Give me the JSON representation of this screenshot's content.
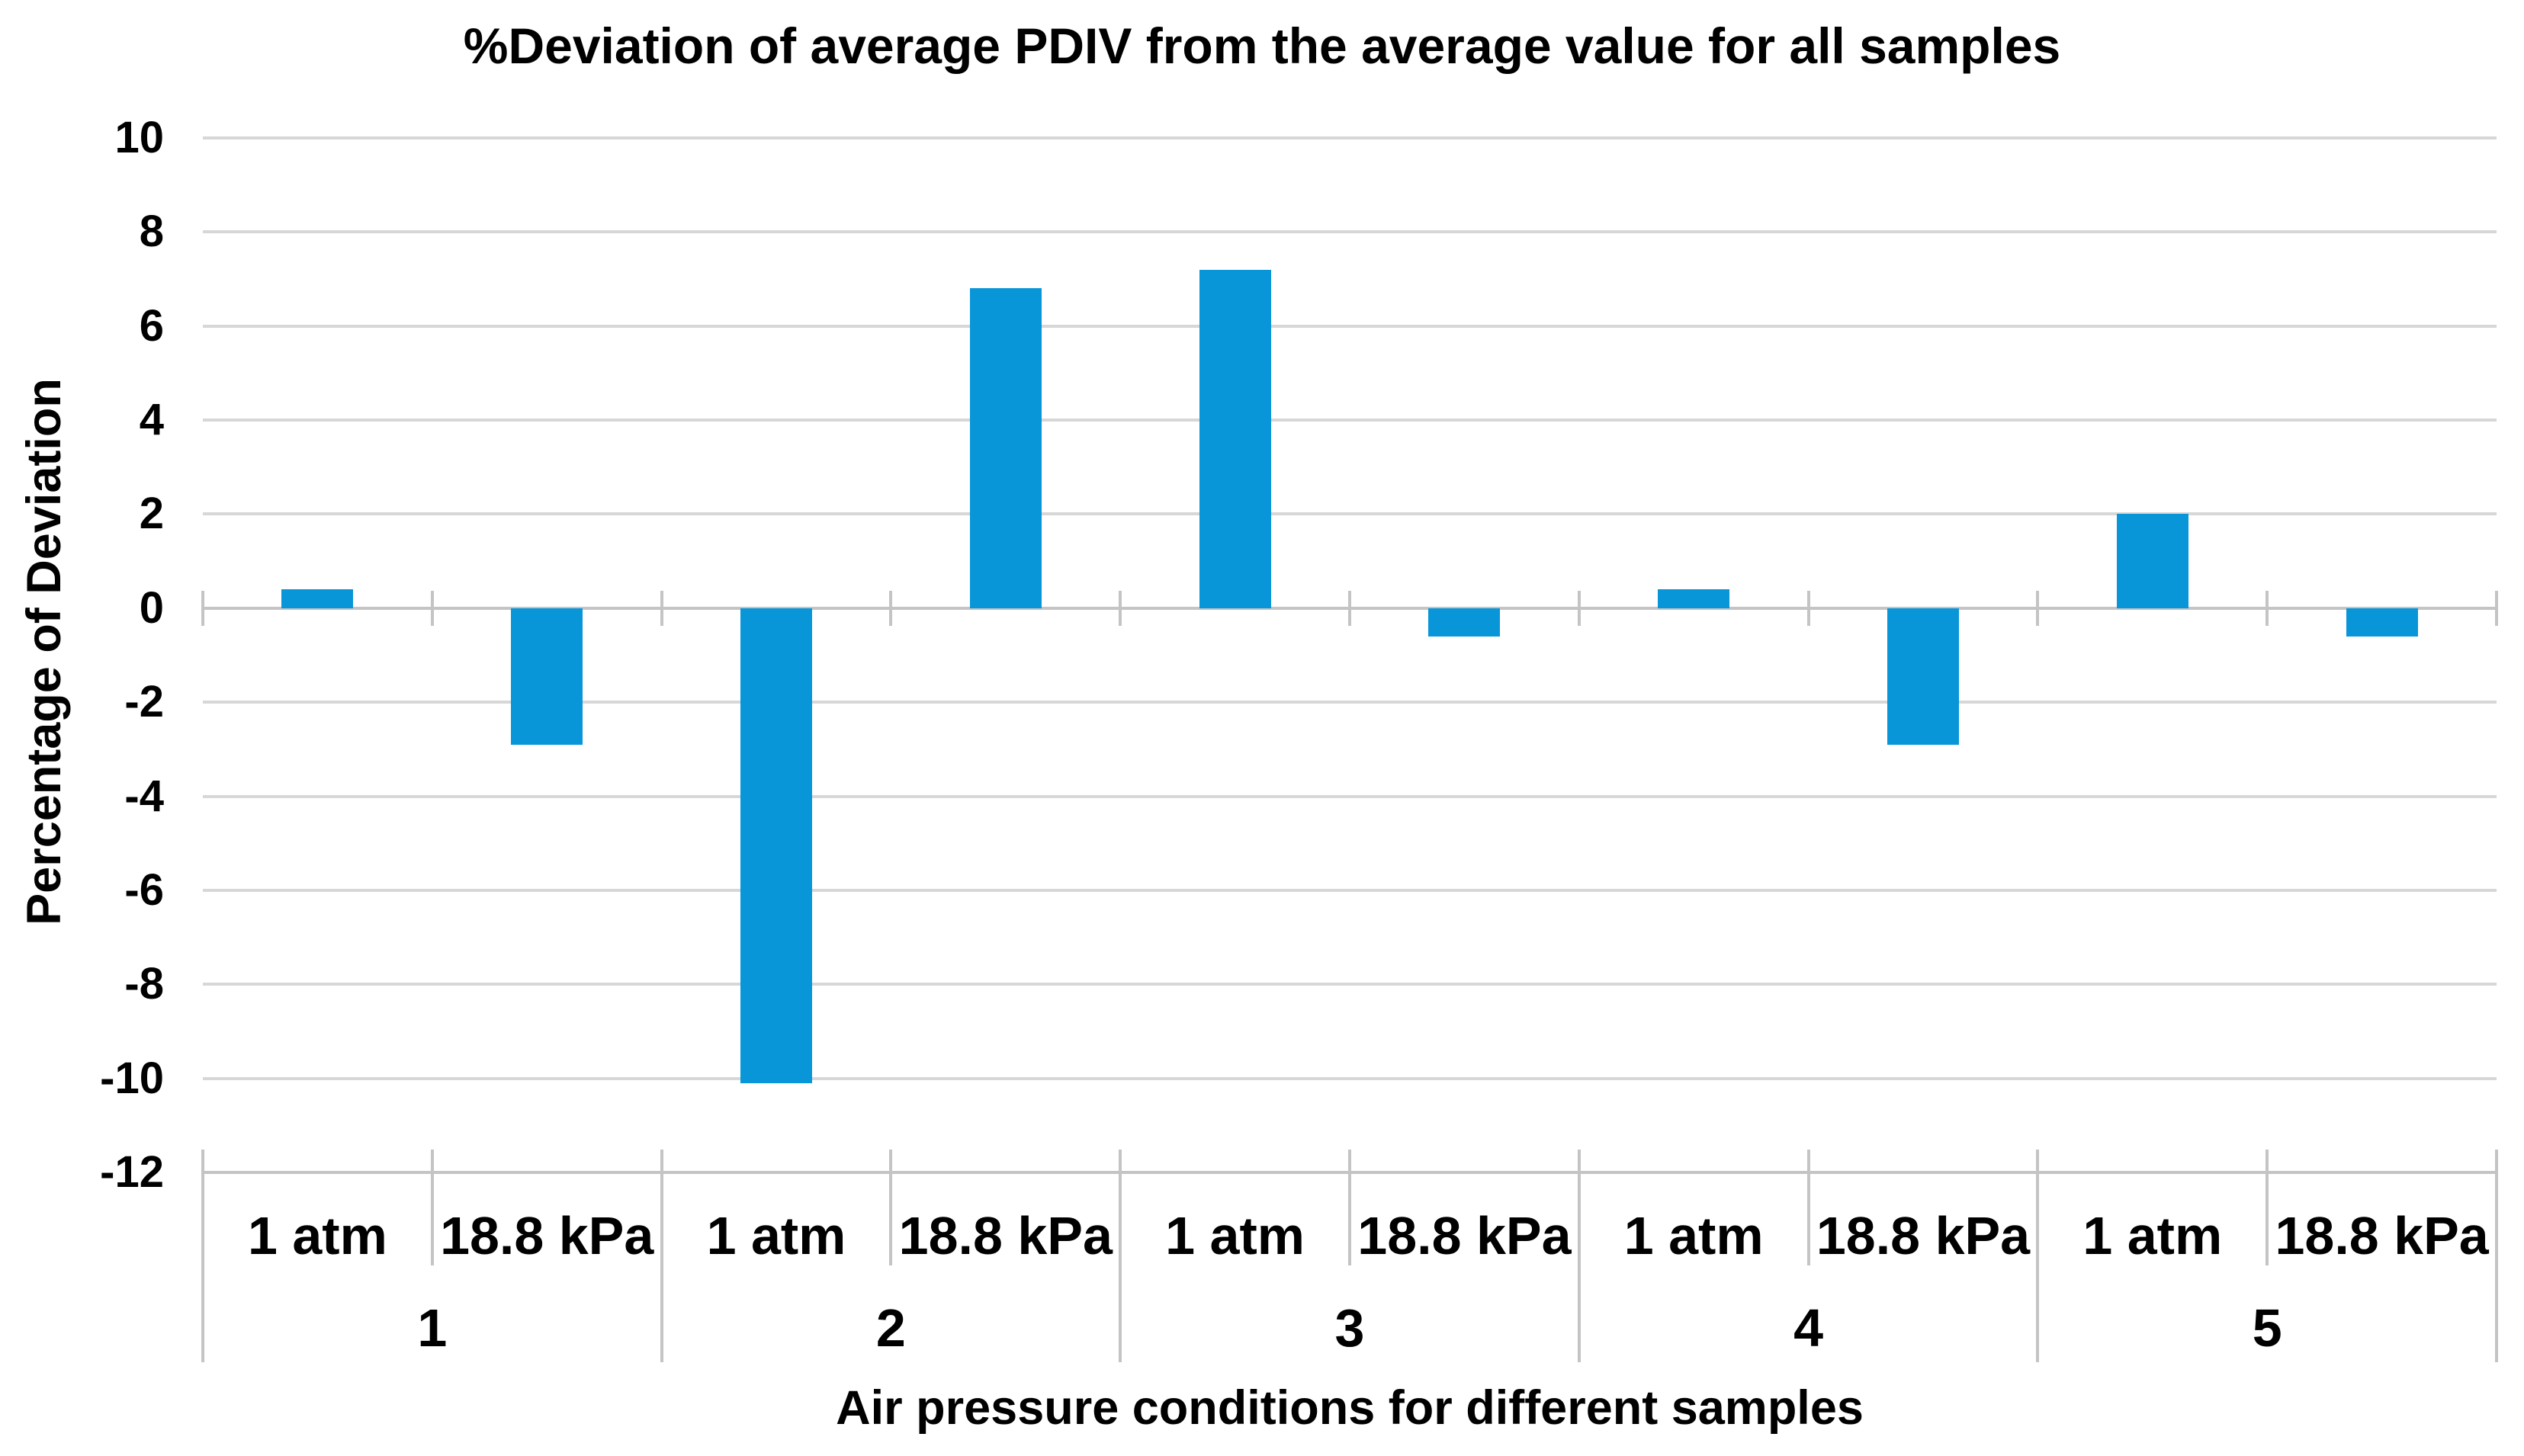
{
  "chart_data": {
    "type": "bar",
    "title": "%Deviation of average PDIV from the average value for all samples",
    "xlabel": "Air pressure conditions for different samples",
    "ylabel": "Percentage of Deviation",
    "ylim": [
      -12,
      10
    ],
    "ytick_step": 2,
    "yticks": [
      10,
      8,
      6,
      4,
      2,
      0,
      -2,
      -4,
      -6,
      -8,
      -10,
      -12
    ],
    "grid": true,
    "legend": false,
    "bar_color": "#0996D9",
    "gridline_color": "#D7D7D7",
    "axis_color": "#C4C4C4",
    "groups": [
      "1",
      "2",
      "3",
      "4",
      "5"
    ],
    "conditions": [
      "1 atm",
      "18.8 kPa"
    ],
    "values": [
      {
        "group": "1",
        "condition": "1 atm",
        "value": 0.4
      },
      {
        "group": "1",
        "condition": "18.8 kPa",
        "value": -2.9
      },
      {
        "group": "2",
        "condition": "1 atm",
        "value": -10.1
      },
      {
        "group": "2",
        "condition": "18.8 kPa",
        "value": 6.8
      },
      {
        "group": "3",
        "condition": "1 atm",
        "value": 7.2
      },
      {
        "group": "3",
        "condition": "18.8 kPa",
        "value": -0.6
      },
      {
        "group": "4",
        "condition": "1 atm",
        "value": 0.4
      },
      {
        "group": "4",
        "condition": "18.8 kPa",
        "value": -2.9
      },
      {
        "group": "5",
        "condition": "1 atm",
        "value": 2.0
      },
      {
        "group": "5",
        "condition": "18.8 kPa",
        "value": -0.6
      }
    ]
  }
}
